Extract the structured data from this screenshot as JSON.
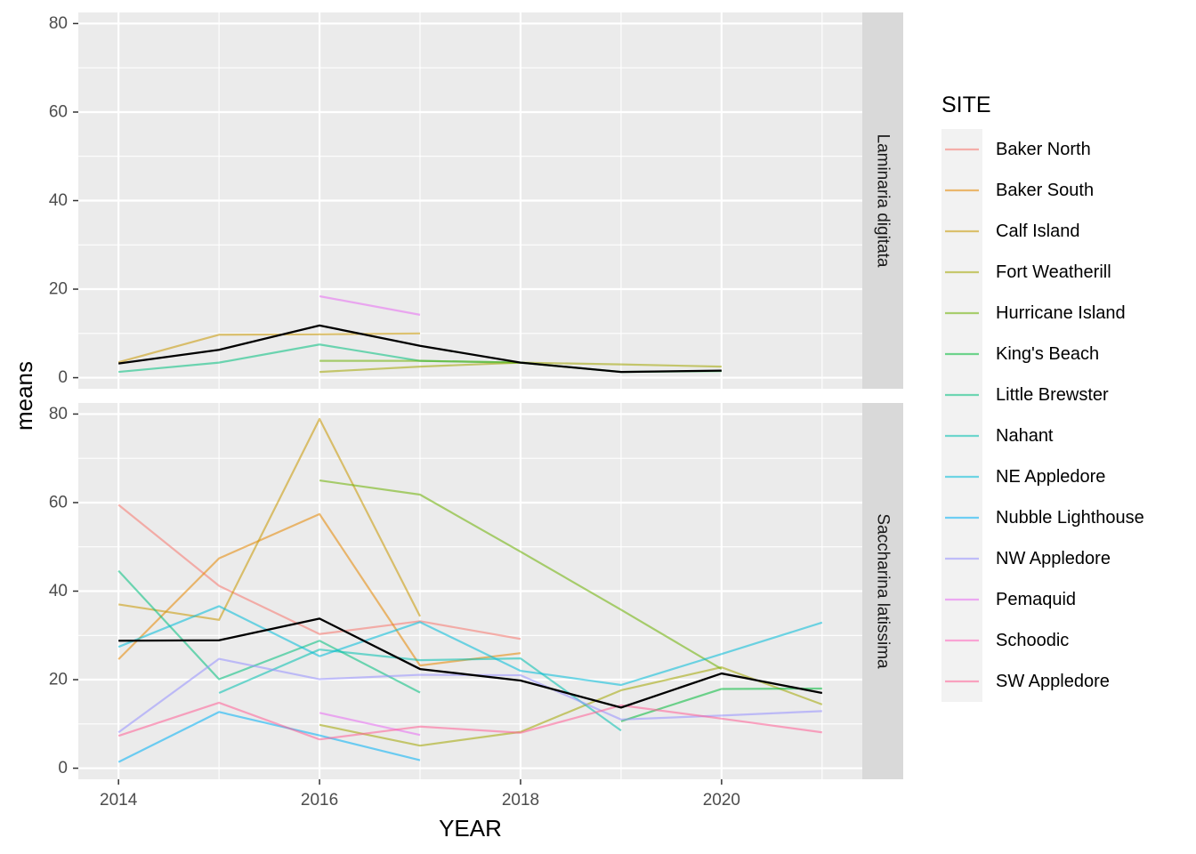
{
  "chart_data": {
    "type": "line",
    "xlabel": "YEAR",
    "ylabel": "means",
    "xlim": [
      2013.6,
      2021.4
    ],
    "ylim": [
      -2.5,
      82.5
    ],
    "x_ticks": [
      2014,
      2016,
      2018,
      2020
    ],
    "x_tick_labels": [
      "2014",
      "2016",
      "2018",
      "2020"
    ],
    "y_ticks": [
      0,
      20,
      40,
      60,
      80
    ],
    "y_tick_labels": [
      "0",
      "20",
      "40",
      "60",
      "80"
    ],
    "grid": true,
    "legend": {
      "title": "SITE",
      "placement": "right",
      "entries": [
        {
          "name": "Baker North",
          "color": "#F8766D"
        },
        {
          "name": "Baker South",
          "color": "#E58700"
        },
        {
          "name": "Calf Island",
          "color": "#C99800"
        },
        {
          "name": "Fort Weatherill",
          "color": "#A3A500"
        },
        {
          "name": "Hurricane Island",
          "color": "#6BB100"
        },
        {
          "name": "King's Beach",
          "color": "#00BA38"
        },
        {
          "name": "Little Brewster",
          "color": "#00BF7D"
        },
        {
          "name": "Nahant",
          "color": "#00C0AF"
        },
        {
          "name": "NE Appledore",
          "color": "#00BCD8"
        },
        {
          "name": "Nubble Lighthouse",
          "color": "#00B0F6"
        },
        {
          "name": "NW Appledore",
          "color": "#9590FF"
        },
        {
          "name": "Pemaquid",
          "color": "#E76BF3"
        },
        {
          "name": "Schoodic",
          "color": "#FF62BC"
        },
        {
          "name": "SW Appledore",
          "color": "#FF5E95"
        }
      ]
    },
    "panels": [
      {
        "strip": "Laminaria digitata",
        "series": [
          {
            "name": "Calf Island",
            "color": "#C99800",
            "x": [
              2014,
              2015,
              2016,
              2017
            ],
            "y": [
              3.5,
              9.7,
              9.8,
              10
            ]
          },
          {
            "name": "Little Brewster",
            "color": "#00BF7D",
            "x": [
              2014,
              2015,
              2016,
              2017,
              2018
            ],
            "y": [
              1.3,
              3.4,
              7.5,
              3.8,
              3.4
            ]
          },
          {
            "name": "Fort Weatherill",
            "color": "#A3A500",
            "x": [
              2016,
              2017,
              2018,
              2019,
              2020
            ],
            "y": [
              1.3,
              2.5,
              3.4,
              3,
              2.5
            ]
          },
          {
            "name": "Hurricane Island",
            "color": "#6BB100",
            "x": [
              2016,
              2017,
              2018
            ],
            "y": [
              3.8,
              3.8,
              3.4
            ]
          },
          {
            "name": "King's Beach",
            "color": "#00BA38",
            "x": [
              2018,
              2019,
              2020
            ],
            "y": [
              3.4,
              1.3,
              1.5
            ]
          },
          {
            "name": "Pemaquid",
            "color": "#E76BF3",
            "x": [
              2016,
              2017
            ],
            "y": [
              18.4,
              14.2
            ]
          },
          {
            "name": "Mean",
            "color": "#000000",
            "x": [
              2014,
              2015,
              2016,
              2017,
              2018,
              2019,
              2020
            ],
            "y": [
              3.2,
              6.3,
              11.8,
              7.2,
              3.4,
              1.3,
              1.6
            ]
          }
        ]
      },
      {
        "strip": "Saccharina latissima",
        "series": [
          {
            "name": "Baker North",
            "color": "#F8766D",
            "x": [
              2014,
              2015,
              2016,
              2017,
              2018
            ],
            "y": [
              59.5,
              41.2,
              30.3,
              33.2,
              29.2
            ]
          },
          {
            "name": "Baker South",
            "color": "#E58700",
            "x": [
              2014,
              2015,
              2016,
              2017,
              2018
            ],
            "y": [
              24.6,
              47.4,
              57.4,
              23.2,
              26
            ]
          },
          {
            "name": "Calf Island",
            "color": "#C99800",
            "x": [
              2014,
              2015,
              2016,
              2017
            ],
            "y": [
              37,
              33.5,
              78.9,
              34.3
            ]
          },
          {
            "name": "Fort Weatherill",
            "color": "#A3A500",
            "x": [
              2016,
              2017,
              2018,
              2019,
              2020,
              2021
            ],
            "y": [
              9.8,
              5.1,
              8.2,
              17.6,
              22.8,
              14.4
            ]
          },
          {
            "name": "Hurricane Island",
            "color": "#6BB100",
            "x": [
              2016,
              2017,
              2018,
              2019,
              2020
            ],
            "y": [
              65,
              61.8,
              48.9,
              35.8,
              22.4
            ]
          },
          {
            "name": "King's Beach",
            "color": "#00BA38",
            "x": [
              2019,
              2020,
              2021
            ],
            "y": [
              10.6,
              17.9,
              18
            ]
          },
          {
            "name": "Little Brewster",
            "color": "#00BF7D",
            "x": [
              2014,
              2015,
              2016,
              2017
            ],
            "y": [
              44.6,
              20.1,
              28.8,
              17.1
            ]
          },
          {
            "name": "Nahant",
            "color": "#00C0AF",
            "x": [
              2015,
              2016,
              2017,
              2018,
              2019
            ],
            "y": [
              17,
              26.8,
              24.4,
              24.8,
              8.5
            ]
          },
          {
            "name": "NE Appledore",
            "color": "#00BCD8",
            "x": [
              2014,
              2015,
              2016,
              2017,
              2018,
              2019,
              2020,
              2021
            ],
            "y": [
              27.4,
              36.6,
              25.3,
              33,
              22,
              18.8,
              25.8,
              32.9
            ]
          },
          {
            "name": "Nubble Lighthouse",
            "color": "#00B0F6",
            "x": [
              2014,
              2015,
              2016,
              2017
            ],
            "y": [
              1.4,
              12.7,
              7.4,
              1.8
            ]
          },
          {
            "name": "NW Appledore",
            "color": "#9590FF",
            "x": [
              2014,
              2015,
              2016,
              2017,
              2018,
              2019,
              2020,
              2021
            ],
            "y": [
              8.1,
              24.7,
              20.1,
              21.1,
              21,
              11,
              11.9,
              12.9
            ]
          },
          {
            "name": "Pemaquid",
            "color": "#E76BF3",
            "x": [
              2016,
              2017
            ],
            "y": [
              12.5,
              7.5
            ]
          },
          {
            "name": "SW Appledore",
            "color": "#FF5E95",
            "x": [
              2014,
              2015,
              2016,
              2017,
              2018,
              2019,
              2020,
              2021
            ],
            "y": [
              7.3,
              14.8,
              6.5,
              9.4,
              8,
              14.2,
              11.2,
              8.1
            ]
          },
          {
            "name": "Mean",
            "color": "#000000",
            "x": [
              2014,
              2015,
              2016,
              2017,
              2018,
              2019,
              2020,
              2021
            ],
            "y": [
              28.8,
              28.9,
              33.8,
              22.4,
              19.8,
              13.7,
              21.4,
              17
            ]
          }
        ]
      }
    ]
  }
}
